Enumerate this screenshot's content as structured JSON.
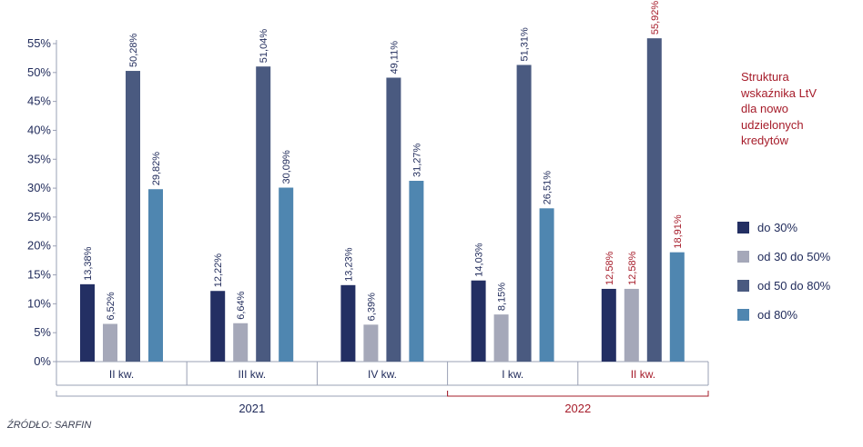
{
  "chart_data": {
    "type": "bar",
    "title": "Struktura wskaźnika LtV dla nowo udzielonych kredytów",
    "title_lines": [
      "Struktura",
      "wskaźnika LtV",
      "dla nowo",
      "udzielonych",
      "kredytów"
    ],
    "categories": [
      "II kw.",
      "III kw.",
      "IV kw.",
      "I kw.",
      "II kw."
    ],
    "years": [
      {
        "label": "2021",
        "from": 0,
        "to": 2
      },
      {
        "label": "2022",
        "from": 3,
        "to": 4
      }
    ],
    "ylim": [
      0,
      55
    ],
    "yticks": [
      "0%",
      "5%",
      "10%",
      "15%",
      "20%",
      "25%",
      "30%",
      "35%",
      "40%",
      "45%",
      "50%",
      "55%"
    ],
    "grid": false,
    "legend_position": "right",
    "series": [
      {
        "name": "do 30%",
        "color": "#232f63",
        "values": [
          13.38,
          12.22,
          13.23,
          14.03,
          12.58
        ],
        "labels": [
          "13,38%",
          "12,22%",
          "13,23%",
          "14,03%",
          "12,58%"
        ]
      },
      {
        "name": "od 30 do 50%",
        "color": "#a5a8b9",
        "values": [
          6.52,
          6.64,
          6.39,
          8.15,
          12.58
        ],
        "labels": [
          "6,52%",
          "6,64%",
          "6,39%",
          "8,15%",
          "12,58%"
        ]
      },
      {
        "name": "od 50 do 80%",
        "color": "#4a5a80",
        "values": [
          50.28,
          51.04,
          49.11,
          51.31,
          55.92
        ],
        "labels": [
          "50,28%",
          "51,04%",
          "49,11%",
          "51,31%",
          "55,92%"
        ]
      },
      {
        "name": "od 80%",
        "color": "#4f86b0",
        "values": [
          29.82,
          30.09,
          31.27,
          26.51,
          18.91
        ],
        "labels": [
          "29,82%",
          "30,09%",
          "31,27%",
          "26,51%",
          "18,91%"
        ]
      }
    ],
    "highlight_category_index": 4,
    "colors": {
      "text": "#1f2a5a",
      "accent": "#a61c2a",
      "axis": "#9aa0b4"
    }
  },
  "source": "ŹRÓDŁO: SARFIN"
}
